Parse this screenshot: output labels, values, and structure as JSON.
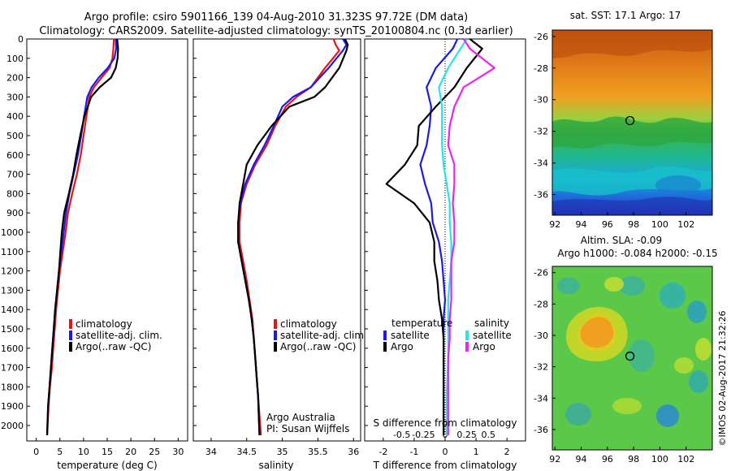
{
  "title_line1": "Argo profile: csiro 5901166_139 04-Aug-2010 31.323S 97.72E (DM data)",
  "title_line2": "Climatology: CARS2009. Satellite-adjusted climatology: synTS_20100804.nc (0.3d earlier)",
  "colors": {
    "climatology": "#ee1111",
    "satellite": "#1a1aee",
    "argo": "#000000",
    "sal_satellite": "#22e6e6",
    "sal_argo": "#ee22ee"
  },
  "credits": {
    "org": "Argo Australia",
    "pi": "PI: Susan Wijffels"
  },
  "timestamp": "©IMOS 02-Aug-2017 21:32:26",
  "chart_data": [
    {
      "type": "line",
      "panel": "temperature",
      "xlabel": "temperature (deg C)",
      "ylabel": "",
      "xlim": [
        -2,
        32
      ],
      "xticks": [
        0,
        5,
        10,
        15,
        20,
        25,
        30
      ],
      "ylim": [
        0,
        2080
      ],
      "yticks": [
        0,
        100,
        200,
        300,
        400,
        500,
        600,
        700,
        800,
        900,
        1000,
        1100,
        1200,
        1300,
        1400,
        1500,
        1600,
        1700,
        1800,
        1900,
        2000
      ],
      "legend": [
        "climatology",
        "satellite-adj. clim.",
        "Argo(..raw -QC)"
      ],
      "legend_placement": "lower-right",
      "series": [
        {
          "name": "climatology",
          "color_key": "climatology",
          "x": [
            16.4,
            16.3,
            16.1,
            15.5,
            13.8,
            12.2,
            11.2,
            10.6,
            10.0,
            9.4,
            8.6,
            7.6,
            6.7,
            6.2,
            5.6,
            5.0,
            4.6,
            4.2,
            3.9,
            3.6,
            3.3,
            2.9,
            2.6,
            2.3
          ],
          "depth": [
            0,
            50,
            100,
            150,
            200,
            250,
            300,
            400,
            500,
            600,
            700,
            800,
            900,
            1000,
            1100,
            1200,
            1300,
            1400,
            1500,
            1600,
            1700,
            1800,
            1900,
            2050
          ]
        },
        {
          "name": "satellite-adj. clim.",
          "color_key": "satellite",
          "x": [
            16.8,
            16.9,
            16.5,
            15.1,
            13.2,
            11.7,
            10.8,
            10.1,
            9.5,
            8.8,
            7.9,
            7.0,
            6.3,
            5.8,
            5.3,
            4.8,
            4.4,
            4.0,
            3.7,
            3.4,
            3.1,
            2.8,
            2.5,
            2.3
          ],
          "depth": [
            0,
            50,
            100,
            150,
            200,
            250,
            300,
            400,
            500,
            600,
            700,
            800,
            900,
            1000,
            1100,
            1200,
            1300,
            1400,
            1500,
            1600,
            1700,
            1800,
            1900,
            2050
          ]
        },
        {
          "name": "Argo(..raw -QC)",
          "color_key": "argo",
          "x": [
            17.1,
            17.3,
            17.2,
            16.8,
            15.8,
            13.4,
            11.6,
            10.2,
            9.3,
            8.5,
            7.8,
            6.9,
            5.9,
            5.4,
            5.1,
            4.8,
            4.4,
            4.0,
            3.7,
            3.4,
            3.1,
            2.8,
            2.5,
            2.3
          ],
          "depth": [
            0,
            50,
            100,
            150,
            200,
            250,
            300,
            400,
            500,
            600,
            700,
            800,
            900,
            1000,
            1100,
            1200,
            1300,
            1400,
            1500,
            1600,
            1700,
            1800,
            1900,
            2050
          ]
        }
      ]
    },
    {
      "type": "line",
      "panel": "salinity",
      "xlabel": "salinity",
      "ylabel": "",
      "xlim": [
        33.75,
        36.1
      ],
      "xticks": [
        34,
        34.5,
        35,
        35.5,
        36
      ],
      "ylim": [
        0,
        2080
      ],
      "legend": [
        "climatology",
        "satellite-adj. clim.",
        "Argo(..raw -QC)"
      ],
      "legend_placement": "lower-right",
      "series": [
        {
          "name": "climatology",
          "color_key": "climatology",
          "x": [
            35.72,
            35.75,
            35.8,
            35.6,
            35.4,
            35.2,
            35.05,
            34.9,
            34.78,
            34.62,
            34.5,
            34.42,
            34.4,
            34.4,
            34.45,
            34.5,
            34.54,
            34.58,
            34.6,
            34.62,
            34.64,
            34.66,
            34.68,
            34.7
          ],
          "depth": [
            0,
            30,
            60,
            150,
            250,
            300,
            350,
            450,
            550,
            650,
            750,
            850,
            950,
            1050,
            1150,
            1250,
            1350,
            1450,
            1550,
            1650,
            1750,
            1850,
            1950,
            2050
          ]
        },
        {
          "name": "satellite-adj. clim.",
          "color_key": "satellite",
          "x": [
            35.85,
            35.9,
            35.85,
            35.65,
            35.4,
            35.15,
            35.0,
            34.88,
            34.75,
            34.6,
            34.48,
            34.41,
            34.38,
            34.38,
            34.43,
            34.48,
            34.53,
            34.57,
            34.6,
            34.62,
            34.64,
            34.66,
            34.67,
            34.68
          ],
          "depth": [
            0,
            30,
            60,
            150,
            250,
            300,
            350,
            450,
            550,
            650,
            750,
            850,
            950,
            1050,
            1150,
            1250,
            1350,
            1450,
            1550,
            1650,
            1750,
            1850,
            1950,
            2050
          ]
        },
        {
          "name": "Argo(..raw -QC)",
          "color_key": "argo",
          "x": [
            35.88,
            35.92,
            35.9,
            35.8,
            35.6,
            35.45,
            35.1,
            34.85,
            34.65,
            34.5,
            34.45,
            34.4,
            34.38,
            34.38,
            34.43,
            34.48,
            34.53,
            34.57,
            34.6,
            34.62,
            34.64,
            34.66,
            34.67,
            34.68
          ],
          "depth": [
            0,
            30,
            60,
            150,
            250,
            300,
            350,
            450,
            550,
            650,
            750,
            850,
            950,
            1050,
            1150,
            1250,
            1350,
            1450,
            1550,
            1650,
            1750,
            1850,
            1950,
            2050
          ]
        }
      ]
    },
    {
      "type": "line",
      "panel": "differences",
      "xlabel": "T difference from climatology",
      "x2label": "S difference from climatology",
      "xlim": [
        -2.6,
        2.6
      ],
      "xticks": [
        -2,
        -1,
        0,
        1,
        2
      ],
      "x2ticks": [
        "-0.5",
        "-0.25",
        "0",
        "0.25",
        "0.5"
      ],
      "ylim": [
        0,
        2080
      ],
      "legend_groups": {
        "temperature": [
          "satellite",
          "Argo"
        ],
        "salinity": [
          "satellite",
          "Argo"
        ]
      },
      "legend_placement": "lower",
      "series": [
        {
          "name": "satellite",
          "group": "temperature",
          "color_key": "satellite",
          "x": [
            0.4,
            0.25,
            -0.3,
            -0.6,
            -0.45,
            -0.5,
            -0.6,
            -0.8,
            -0.65,
            -0.45,
            -0.4,
            -0.2,
            -0.1,
            -0.05,
            0.0,
            -0.05,
            -0.05,
            -0.05,
            -0.05,
            -0.05
          ],
          "depth": [
            0,
            50,
            150,
            250,
            350,
            450,
            550,
            650,
            750,
            850,
            950,
            1050,
            1150,
            1250,
            1350,
            1450,
            1550,
            1650,
            1850,
            2050
          ]
        },
        {
          "name": "Argo",
          "group": "temperature",
          "color_key": "argo",
          "x": [
            0.8,
            1.2,
            0.7,
            0.3,
            -0.3,
            -0.85,
            -0.9,
            -1.3,
            -1.9,
            -1.0,
            -0.5,
            -0.35,
            -0.35,
            -0.25,
            -0.2,
            -0.1,
            -0.05,
            -0.05,
            -0.05,
            -0.05
          ],
          "depth": [
            0,
            50,
            150,
            250,
            350,
            450,
            550,
            650,
            750,
            850,
            950,
            1050,
            1150,
            1250,
            1350,
            1450,
            1550,
            1650,
            1850,
            2050
          ]
        },
        {
          "name": "satellite",
          "group": "salinity",
          "color_key": "sal_satellite",
          "x": [
            0.7,
            0.5,
            0.1,
            -0.2,
            -0.1,
            -0.1,
            -0.1,
            -0.05,
            0.05,
            0.15,
            0.15,
            0.2,
            0.2,
            0.15,
            0.1,
            0.1,
            0.1,
            0.1,
            0.05,
            0.05
          ],
          "depth": [
            0,
            50,
            150,
            250,
            350,
            450,
            550,
            650,
            750,
            850,
            950,
            1050,
            1150,
            1250,
            1350,
            1450,
            1550,
            1650,
            1850,
            2050
          ]
        },
        {
          "name": "Argo",
          "group": "salinity",
          "color_key": "sal_argo",
          "x": [
            0.6,
            0.8,
            1.6,
            0.6,
            0.3,
            0.15,
            0.1,
            0.3,
            0.3,
            0.25,
            0.3,
            0.3,
            0.2,
            0.2,
            0.2,
            0.15,
            0.15,
            0.1,
            0.1,
            0.1
          ],
          "depth": [
            0,
            50,
            150,
            250,
            350,
            450,
            550,
            650,
            750,
            850,
            950,
            1050,
            1150,
            1250,
            1350,
            1450,
            1550,
            1650,
            1850,
            2050
          ]
        }
      ]
    },
    {
      "type": "heatmap",
      "panel": "sst_map",
      "title": "sat. SST: 17.1  Argo: 17",
      "xlim": [
        91.8,
        104
      ],
      "xticks": [
        92,
        94,
        96,
        98,
        100,
        102
      ],
      "ylim": [
        -37.3,
        -25.6
      ],
      "yticks": [
        -26,
        -28,
        -30,
        -32,
        -34,
        -36
      ],
      "float_position": {
        "lon": 97.72,
        "lat": -31.323
      }
    },
    {
      "type": "heatmap",
      "panel": "sla_map",
      "title": "Altim. SLA: -0.09",
      "subtitle": "Argo h1000: -0.084  h2000: -0.15",
      "xlim": [
        91.8,
        104
      ],
      "xticks": [
        92,
        94,
        96,
        98,
        100,
        102
      ],
      "ylim": [
        -37.3,
        -25.6
      ],
      "yticks": [
        -26,
        -28,
        -30,
        -32,
        -34,
        -36
      ],
      "float_position": {
        "lon": 97.72,
        "lat": -31.323
      }
    }
  ]
}
